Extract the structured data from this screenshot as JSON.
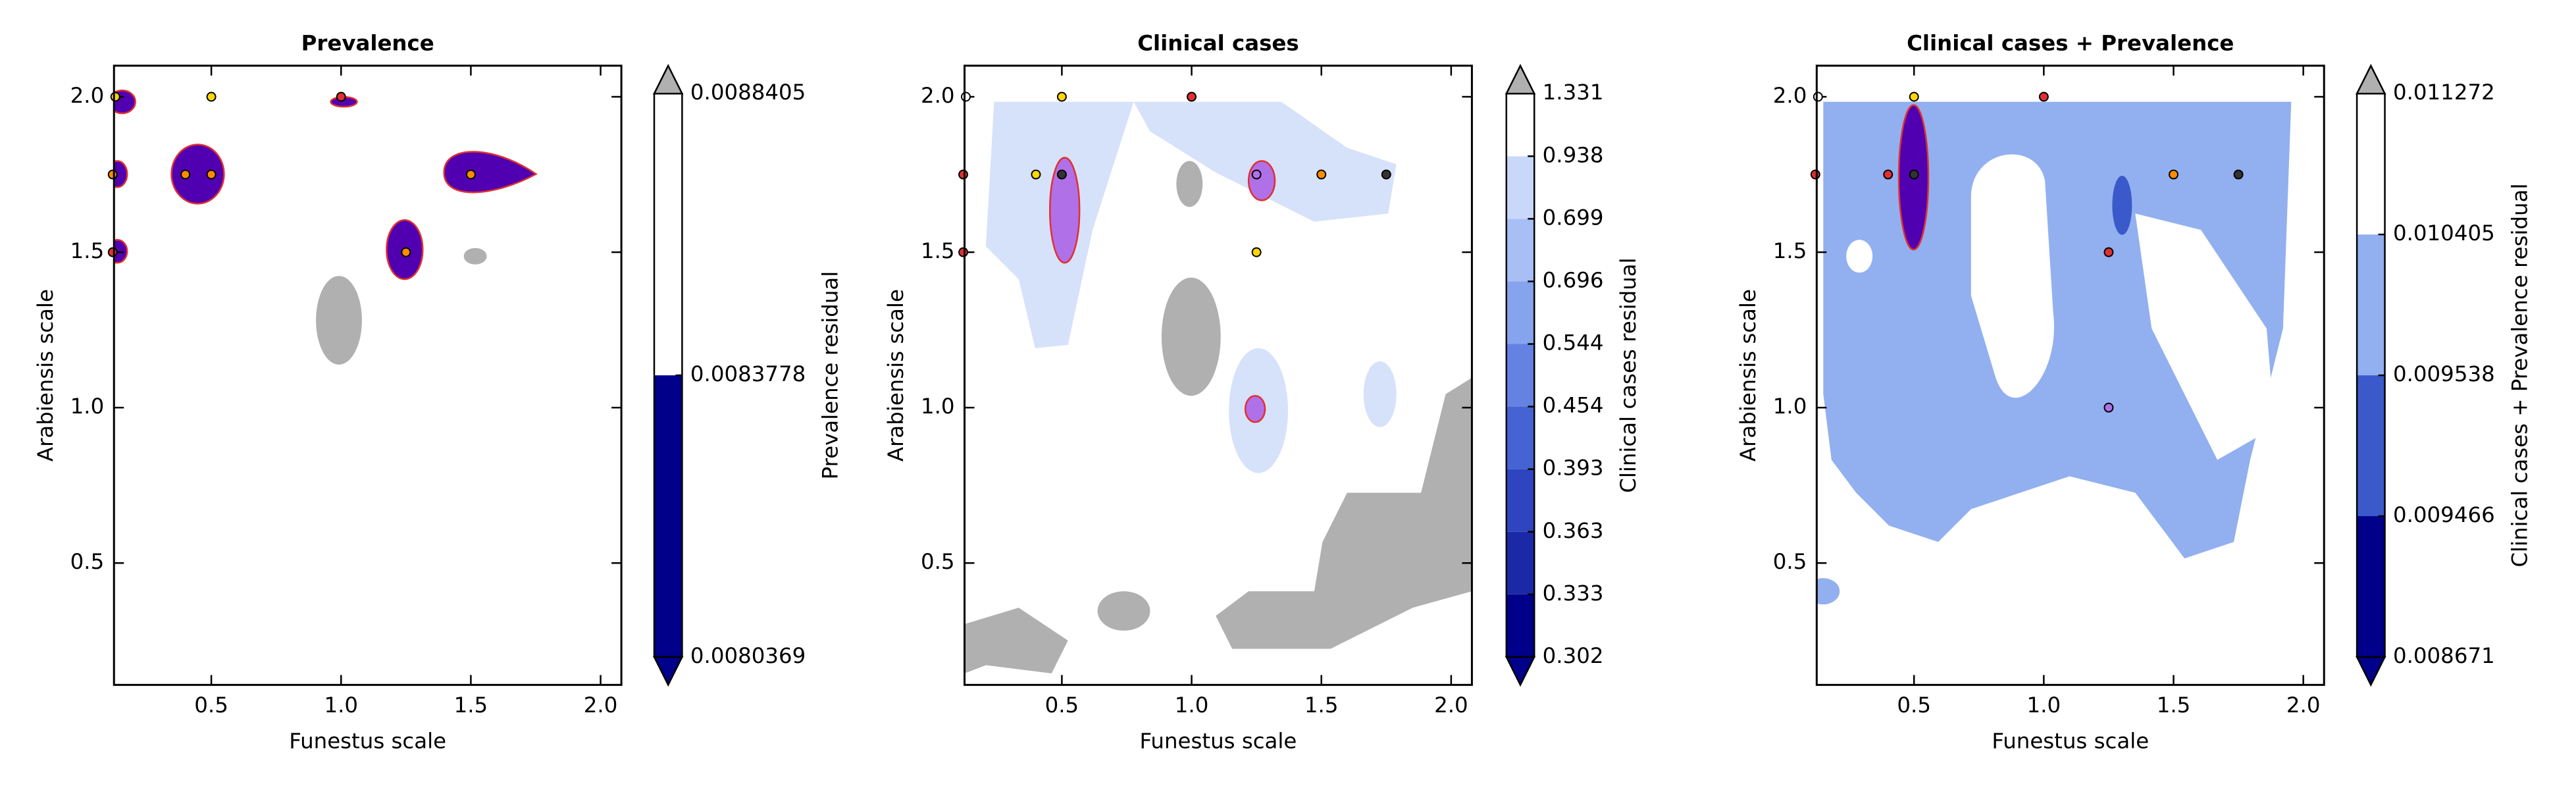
{
  "chart_data": [
    {
      "type": "contour",
      "title": "Prevalence",
      "xlabel": "Funestus scale",
      "ylabel": "Arabiensis scale",
      "colorbar_label": "Prevalence residual",
      "xlim": [
        0.125,
        2.08
      ],
      "ylim": [
        0.108,
        2.1
      ],
      "xticks": [
        0.5,
        {
          "value": 1,
          "label": "1.0"
        },
        1.5,
        {
          "value": 2,
          "label": "2.0"
        }
      ],
      "yticks": [
        0.5,
        {
          "value": 1,
          "label": "1.0"
        },
        1.5,
        {
          "value": 2,
          "label": "2.0"
        }
      ],
      "levels": [
        0.0080369,
        0.0083778,
        0.0088405
      ],
      "level_colors": [
        "#00008b",
        "#ffffff"
      ],
      "under_color": "#00008b",
      "over_color": "#b0b0b0",
      "points": {
        "x": [
          0.13,
          0.5,
          1.0,
          0.12,
          0.4,
          0.5,
          1.5,
          0.12,
          1.25
        ],
        "y": [
          2.0,
          2.0,
          2.0,
          1.75,
          1.75,
          1.75,
          1.75,
          1.5,
          1.5
        ],
        "colors": [
          "#ffd700",
          "#ffd700",
          "#e03030",
          "#ff8c00",
          "#ff8c00",
          "#ff8c00",
          "#ff8c00",
          "#e03030",
          "#ff8c00"
        ]
      }
    },
    {
      "type": "contour",
      "title": "Clinical cases",
      "xlabel": "Funestus scale",
      "ylabel": "Arabiensis scale",
      "colorbar_label": "Clinical cases residual",
      "xlim": [
        0.125,
        2.08
      ],
      "ylim": [
        0.108,
        2.1
      ],
      "xticks": [
        0.5,
        {
          "value": 1,
          "label": "1.0"
        },
        1.5,
        {
          "value": 2,
          "label": "2.0"
        }
      ],
      "yticks": [
        0.5,
        {
          "value": 1,
          "label": "1.0"
        },
        1.5,
        {
          "value": 2,
          "label": "2.0"
        }
      ],
      "levels": [
        0.302,
        0.333,
        0.363,
        0.393,
        0.454,
        0.544,
        0.696,
        0.699,
        0.938,
        1.331
      ],
      "level_colors": [
        "#00008b",
        "#1a2aa6",
        "#2e45bf",
        "#4563d3",
        "#6482e2",
        "#86a3ee",
        "#a7bff5",
        "#c9d8fa",
        "#ffffff"
      ],
      "under_color": "#00008b",
      "over_color": "#b0b0b0",
      "points": {
        "x": [
          0.13,
          0.5,
          1.0,
          0.12,
          0.4,
          0.5,
          1.25,
          1.5,
          1.75,
          0.12,
          1.25
        ],
        "y": [
          2.0,
          2.0,
          2.0,
          1.75,
          1.75,
          1.75,
          1.75,
          1.75,
          1.75,
          1.5,
          1.5
        ],
        "colors": [
          "#ffffff",
          "#ffd700",
          "#e03030",
          "#e03030",
          "#ffd700",
          "#333333",
          "#b070e8",
          "#ff8c00",
          "#333333",
          "#e03030",
          "#ffd700"
        ]
      }
    },
    {
      "type": "contour",
      "title": "Clinical cases + Prevalence",
      "xlabel": "Funestus scale",
      "ylabel": "Arabiensis scale",
      "colorbar_label": "Clinical cases + Prevalence residual",
      "xlim": [
        0.125,
        2.08
      ],
      "ylim": [
        0.108,
        2.1
      ],
      "xticks": [
        0.5,
        {
          "value": 1,
          "label": "1.0"
        },
        1.5,
        {
          "value": 2,
          "label": "2.0"
        }
      ],
      "yticks": [
        0.5,
        {
          "value": 1,
          "label": "1.0"
        },
        1.5,
        {
          "value": 2,
          "label": "2.0"
        }
      ],
      "levels": [
        0.008671,
        0.009466,
        0.009538,
        0.010405,
        0.011272
      ],
      "level_colors": [
        "#00008b",
        "#3a5acb",
        "#92b0f0",
        "#ffffff"
      ],
      "under_color": "#00008b",
      "over_color": "#b0b0b0",
      "points": {
        "x": [
          0.13,
          0.5,
          1.0,
          0.12,
          0.4,
          0.5,
          1.5,
          1.75,
          1.25,
          1.25
        ],
        "y": [
          2.0,
          2.0,
          2.0,
          1.75,
          1.75,
          1.75,
          1.75,
          1.75,
          1.5,
          1.0
        ],
        "colors": [
          "#ffffff",
          "#ffd700",
          "#e03030",
          "#e03030",
          "#e03030",
          "#333333",
          "#ff8c00",
          "#333333",
          "#e03030",
          "#b070e8"
        ]
      }
    }
  ]
}
